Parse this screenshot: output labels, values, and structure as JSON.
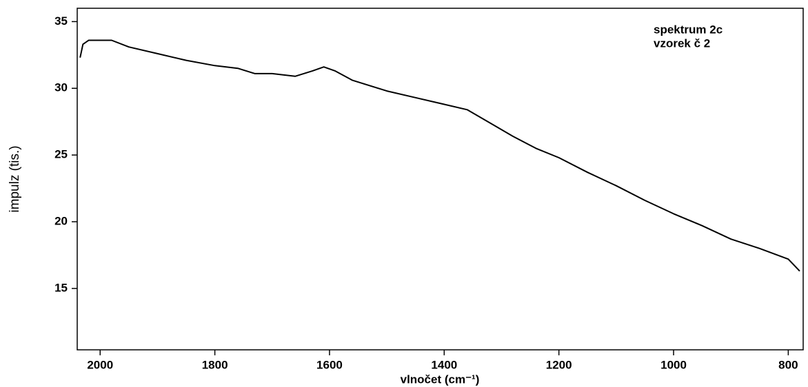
{
  "chart_data": {
    "type": "line",
    "annotations": [
      "spektrum  2c",
      "vzorek č   2"
    ],
    "x_label": "vlnočet (cm⁻¹)",
    "y_label": "impulz (tis.)",
    "x": [
      2035,
      2030,
      2020,
      2000,
      1980,
      1950,
      1900,
      1850,
      1800,
      1760,
      1730,
      1700,
      1660,
      1630,
      1610,
      1590,
      1560,
      1500,
      1450,
      1400,
      1360,
      1320,
      1280,
      1240,
      1200,
      1150,
      1100,
      1050,
      1000,
      950,
      900,
      850,
      800,
      780
    ],
    "series": [
      {
        "name": "spektrum 2c",
        "color": "#000000",
        "values": [
          32.3,
          33.3,
          33.6,
          33.6,
          33.6,
          33.1,
          32.6,
          32.1,
          31.7,
          31.5,
          31.1,
          31.1,
          30.9,
          31.3,
          31.6,
          31.3,
          30.6,
          29.8,
          29.3,
          28.8,
          28.4,
          27.4,
          26.4,
          25.5,
          24.8,
          23.7,
          22.7,
          21.6,
          20.6,
          19.7,
          18.7,
          18.0,
          17.2,
          16.3
        ]
      }
    ],
    "xlim": [
      2040,
      774
    ],
    "xticks": [
      2000,
      1800,
      1600,
      1400,
      1200,
      1000,
      800
    ],
    "ylim": [
      10.4,
      36
    ],
    "yticks": [
      15,
      20,
      25,
      30,
      35
    ],
    "grid": false
  }
}
